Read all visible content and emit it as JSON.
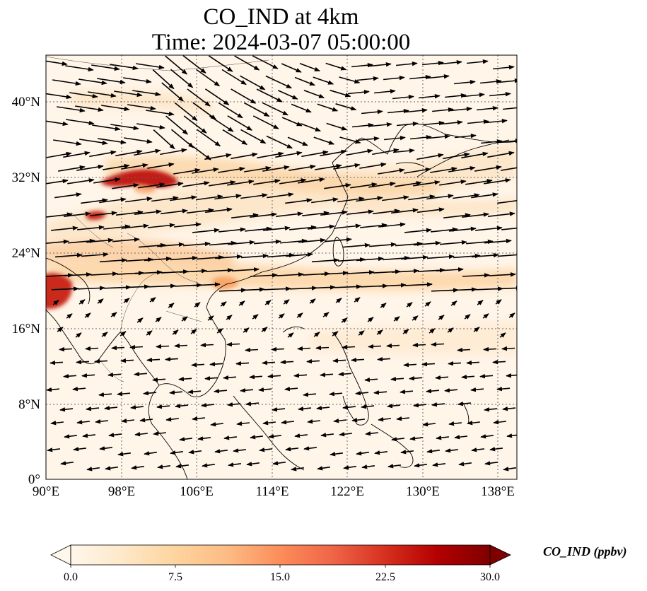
{
  "title": {
    "line1": "CO_IND at 4km",
    "line2": "Time: 2024-03-07 05:00:00"
  },
  "map": {
    "lon_range": [
      90,
      140
    ],
    "lat_range": [
      0,
      45
    ],
    "lon_ticks": [
      "90°E",
      "98°E",
      "106°E",
      "114°E",
      "122°E",
      "130°E",
      "138°E"
    ],
    "lat_ticks": [
      "0°",
      "8°N",
      "16°N",
      "24°N",
      "32°N",
      "40°N"
    ],
    "gridlines": "dotted",
    "field_colormap": "OrRd",
    "wind_vectors": "shown"
  },
  "colorbar": {
    "label": "CO_IND (ppbv)",
    "ticks": [
      "0.0",
      "7.5",
      "15.0",
      "22.5",
      "30.0"
    ],
    "min": 0,
    "max": 30,
    "extend": "both",
    "colors": [
      "#fff7ec",
      "#fee8c8",
      "#fdd49e",
      "#fdbb84",
      "#fc8d59",
      "#ef6548",
      "#d7301f",
      "#b30000",
      "#7f0000"
    ]
  }
}
